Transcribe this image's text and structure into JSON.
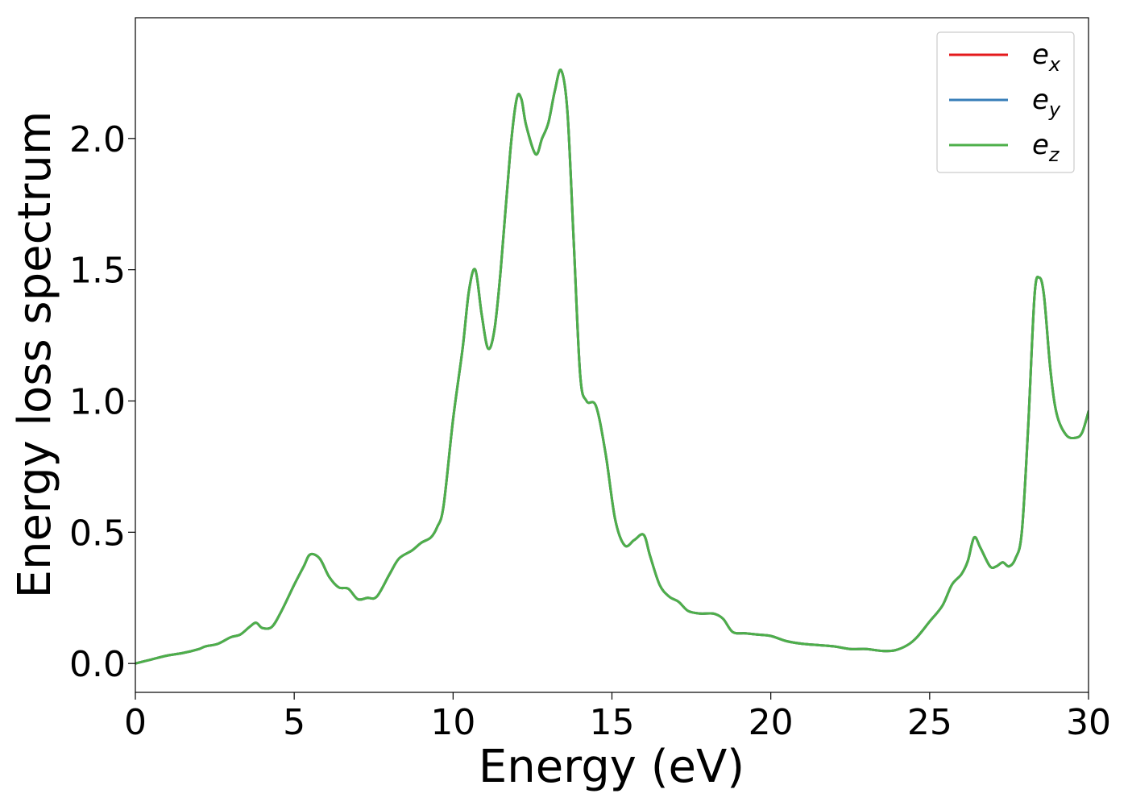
{
  "chart_data": {
    "type": "line",
    "xlabel": "Energy (eV)",
    "ylabel": "Energy loss spectrum",
    "xlim": [
      0,
      30
    ],
    "ylim": [
      -0.11,
      2.46
    ],
    "xticks": [
      0,
      5,
      10,
      15,
      20,
      25,
      30
    ],
    "xtick_labels": [
      "0",
      "5",
      "10",
      "15",
      "20",
      "25",
      "30"
    ],
    "yticks": [
      0.0,
      0.5,
      1.0,
      1.5,
      2.0
    ],
    "ytick_labels": [
      "0.0",
      "0.5",
      "1.0",
      "1.5",
      "2.0"
    ],
    "grid": false,
    "legend_position": "top-right",
    "series": [
      {
        "name": "e_x",
        "label_base": "e",
        "label_sub": "x",
        "color": "#e41a1c",
        "x": [
          0,
          0.5,
          1,
          1.5,
          2,
          2.2,
          2.6,
          3,
          3.3,
          3.6,
          3.8,
          4.0,
          4.3,
          4.6,
          5.0,
          5.3,
          5.5,
          5.8,
          6.1,
          6.4,
          6.7,
          7.0,
          7.3,
          7.6,
          8.0,
          8.3,
          8.7,
          9.0,
          9.3,
          9.5,
          9.7,
          10.0,
          10.3,
          10.5,
          10.7,
          10.9,
          11.1,
          11.3,
          11.5,
          11.8,
          12.0,
          12.15,
          12.3,
          12.6,
          12.8,
          13.0,
          13.2,
          13.4,
          13.6,
          13.8,
          14.0,
          14.2,
          14.5,
          14.8,
          15.1,
          15.4,
          15.7,
          16.0,
          16.2,
          16.5,
          16.8,
          17.1,
          17.4,
          17.8,
          18.2,
          18.5,
          18.8,
          19.2,
          19.6,
          20.0,
          20.5,
          21.0,
          21.5,
          22.0,
          22.5,
          23.0,
          23.5,
          23.9,
          24.3,
          24.6,
          25.0,
          25.4,
          25.7,
          26.0,
          26.2,
          26.4,
          26.6,
          26.9,
          27.1,
          27.3,
          27.5,
          27.7,
          27.9,
          28.1,
          28.3,
          28.45,
          28.6,
          28.8,
          29.0,
          29.3,
          29.6,
          29.8,
          30.0
        ],
        "y": [
          0.0,
          0.015,
          0.03,
          0.04,
          0.055,
          0.065,
          0.075,
          0.1,
          0.11,
          0.14,
          0.155,
          0.135,
          0.14,
          0.2,
          0.3,
          0.37,
          0.415,
          0.4,
          0.33,
          0.29,
          0.285,
          0.245,
          0.25,
          0.255,
          0.34,
          0.4,
          0.43,
          0.46,
          0.48,
          0.52,
          0.6,
          0.93,
          1.2,
          1.42,
          1.5,
          1.33,
          1.2,
          1.27,
          1.5,
          1.95,
          2.15,
          2.15,
          2.05,
          1.94,
          2.0,
          2.06,
          2.18,
          2.26,
          2.1,
          1.6,
          1.1,
          1.0,
          0.98,
          0.8,
          0.55,
          0.45,
          0.47,
          0.49,
          0.41,
          0.3,
          0.255,
          0.235,
          0.2,
          0.19,
          0.19,
          0.17,
          0.12,
          0.115,
          0.11,
          0.105,
          0.085,
          0.075,
          0.07,
          0.065,
          0.055,
          0.055,
          0.048,
          0.05,
          0.07,
          0.1,
          0.16,
          0.22,
          0.3,
          0.34,
          0.39,
          0.48,
          0.44,
          0.37,
          0.37,
          0.385,
          0.37,
          0.4,
          0.5,
          0.9,
          1.4,
          1.47,
          1.4,
          1.12,
          0.95,
          0.87,
          0.86,
          0.88,
          0.96
        ]
      },
      {
        "name": "e_y",
        "label_base": "e",
        "label_sub": "y",
        "color": "#377eb8",
        "x": [
          0,
          0.5,
          1,
          1.5,
          2,
          2.2,
          2.6,
          3,
          3.3,
          3.6,
          3.8,
          4.0,
          4.3,
          4.6,
          5.0,
          5.3,
          5.5,
          5.8,
          6.1,
          6.4,
          6.7,
          7.0,
          7.3,
          7.6,
          8.0,
          8.3,
          8.7,
          9.0,
          9.3,
          9.5,
          9.7,
          10.0,
          10.3,
          10.5,
          10.7,
          10.9,
          11.1,
          11.3,
          11.5,
          11.8,
          12.0,
          12.15,
          12.3,
          12.6,
          12.8,
          13.0,
          13.2,
          13.4,
          13.6,
          13.8,
          14.0,
          14.2,
          14.5,
          14.8,
          15.1,
          15.4,
          15.7,
          16.0,
          16.2,
          16.5,
          16.8,
          17.1,
          17.4,
          17.8,
          18.2,
          18.5,
          18.8,
          19.2,
          19.6,
          20.0,
          20.5,
          21.0,
          21.5,
          22.0,
          22.5,
          23.0,
          23.5,
          23.9,
          24.3,
          24.6,
          25.0,
          25.4,
          25.7,
          26.0,
          26.2,
          26.4,
          26.6,
          26.9,
          27.1,
          27.3,
          27.5,
          27.7,
          27.9,
          28.1,
          28.3,
          28.45,
          28.6,
          28.8,
          29.0,
          29.3,
          29.6,
          29.8,
          30.0
        ],
        "y": [
          0.0,
          0.015,
          0.03,
          0.04,
          0.055,
          0.065,
          0.075,
          0.1,
          0.11,
          0.14,
          0.155,
          0.135,
          0.14,
          0.2,
          0.3,
          0.37,
          0.415,
          0.4,
          0.33,
          0.29,
          0.285,
          0.245,
          0.25,
          0.255,
          0.34,
          0.4,
          0.43,
          0.46,
          0.48,
          0.52,
          0.6,
          0.93,
          1.2,
          1.42,
          1.5,
          1.33,
          1.2,
          1.27,
          1.5,
          1.95,
          2.15,
          2.15,
          2.05,
          1.94,
          2.0,
          2.06,
          2.18,
          2.26,
          2.1,
          1.6,
          1.1,
          1.0,
          0.98,
          0.8,
          0.55,
          0.45,
          0.47,
          0.49,
          0.41,
          0.3,
          0.255,
          0.235,
          0.2,
          0.19,
          0.19,
          0.17,
          0.12,
          0.115,
          0.11,
          0.105,
          0.085,
          0.075,
          0.07,
          0.065,
          0.055,
          0.055,
          0.048,
          0.05,
          0.07,
          0.1,
          0.16,
          0.22,
          0.3,
          0.34,
          0.39,
          0.48,
          0.44,
          0.37,
          0.37,
          0.385,
          0.37,
          0.4,
          0.5,
          0.9,
          1.4,
          1.47,
          1.4,
          1.12,
          0.95,
          0.87,
          0.86,
          0.88,
          0.96
        ]
      },
      {
        "name": "e_z",
        "label_base": "e",
        "label_sub": "z",
        "color": "#4daf4a",
        "x": [
          0,
          0.5,
          1,
          1.5,
          2,
          2.2,
          2.6,
          3,
          3.3,
          3.6,
          3.8,
          4.0,
          4.3,
          4.6,
          5.0,
          5.3,
          5.5,
          5.8,
          6.1,
          6.4,
          6.7,
          7.0,
          7.3,
          7.6,
          8.0,
          8.3,
          8.7,
          9.0,
          9.3,
          9.5,
          9.7,
          10.0,
          10.3,
          10.5,
          10.7,
          10.9,
          11.1,
          11.3,
          11.5,
          11.8,
          12.0,
          12.15,
          12.3,
          12.6,
          12.8,
          13.0,
          13.2,
          13.4,
          13.6,
          13.8,
          14.0,
          14.2,
          14.5,
          14.8,
          15.1,
          15.4,
          15.7,
          16.0,
          16.2,
          16.5,
          16.8,
          17.1,
          17.4,
          17.8,
          18.2,
          18.5,
          18.8,
          19.2,
          19.6,
          20.0,
          20.5,
          21.0,
          21.5,
          22.0,
          22.5,
          23.0,
          23.5,
          23.9,
          24.3,
          24.6,
          25.0,
          25.4,
          25.7,
          26.0,
          26.2,
          26.4,
          26.6,
          26.9,
          27.1,
          27.3,
          27.5,
          27.7,
          27.9,
          28.1,
          28.3,
          28.45,
          28.6,
          28.8,
          29.0,
          29.3,
          29.6,
          29.8,
          30.0
        ],
        "y": [
          0.0,
          0.015,
          0.03,
          0.04,
          0.055,
          0.065,
          0.075,
          0.1,
          0.11,
          0.14,
          0.155,
          0.135,
          0.14,
          0.2,
          0.3,
          0.37,
          0.415,
          0.4,
          0.33,
          0.29,
          0.285,
          0.245,
          0.25,
          0.255,
          0.34,
          0.4,
          0.43,
          0.46,
          0.48,
          0.52,
          0.6,
          0.93,
          1.2,
          1.42,
          1.5,
          1.33,
          1.2,
          1.27,
          1.5,
          1.95,
          2.15,
          2.15,
          2.05,
          1.94,
          2.0,
          2.06,
          2.18,
          2.26,
          2.1,
          1.6,
          1.1,
          1.0,
          0.98,
          0.8,
          0.55,
          0.45,
          0.47,
          0.49,
          0.41,
          0.3,
          0.255,
          0.235,
          0.2,
          0.19,
          0.19,
          0.17,
          0.12,
          0.115,
          0.11,
          0.105,
          0.085,
          0.075,
          0.07,
          0.065,
          0.055,
          0.055,
          0.048,
          0.05,
          0.07,
          0.1,
          0.16,
          0.22,
          0.3,
          0.34,
          0.39,
          0.48,
          0.44,
          0.37,
          0.37,
          0.385,
          0.37,
          0.4,
          0.5,
          0.9,
          1.4,
          1.47,
          1.4,
          1.12,
          0.95,
          0.87,
          0.86,
          0.88,
          0.96
        ]
      }
    ]
  }
}
